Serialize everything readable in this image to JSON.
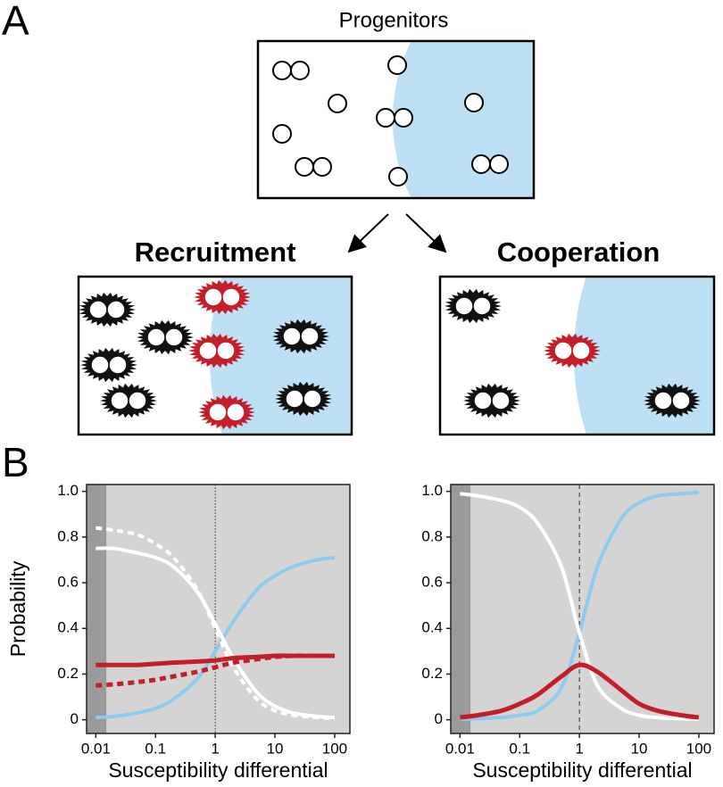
{
  "panel_labels": [
    "A",
    "B"
  ],
  "diagram": {
    "top_label": "Progenitors",
    "left_label": "Recruitment",
    "right_label": "Cooperation"
  },
  "chart_data": [
    {
      "type": "line",
      "xlabel": "Susceptibility differential",
      "ylabel": "Probability",
      "log_x": true,
      "x": [
        0.01,
        0.02,
        0.05,
        0.1,
        0.2,
        0.5,
        1,
        2,
        5,
        10,
        20,
        50,
        100
      ],
      "xlim": [
        0.007,
        180
      ],
      "xticks": [
        0.01,
        0.1,
        1,
        10,
        100
      ],
      "ylim": [
        -0.06,
        1.03
      ],
      "yticks": [
        0,
        0.2,
        0.4,
        0.6,
        0.8,
        {
          "value": 1,
          "label": "1.0"
        }
      ],
      "background": "#d4d4d4",
      "shade_x": [
        0.007,
        0.015
      ],
      "shade_color": "#9a9a9a",
      "vline": 1,
      "vline_style": "dotted",
      "series": [
        {
          "color": "#8ec9ee",
          "style": "solid",
          "values": [
            0.01,
            0.015,
            0.03,
            0.05,
            0.09,
            0.18,
            0.3,
            0.43,
            0.57,
            0.63,
            0.67,
            0.7,
            0.71
          ]
        },
        {
          "color": "#ffffff",
          "style": "dashed",
          "values": [
            0.84,
            0.83,
            0.81,
            0.77,
            0.71,
            0.57,
            0.4,
            0.23,
            0.09,
            0.04,
            0.02,
            0.01,
            0.005
          ]
        },
        {
          "color": "#ffffff",
          "style": "solid",
          "values": [
            0.75,
            0.75,
            0.73,
            0.71,
            0.67,
            0.56,
            0.42,
            0.27,
            0.12,
            0.06,
            0.03,
            0.015,
            0.01
          ]
        },
        {
          "color": "#c41e2a",
          "style": "dashed",
          "values": [
            0.15,
            0.155,
            0.165,
            0.175,
            0.19,
            0.21,
            0.23,
            0.25,
            0.265,
            0.275,
            0.28,
            0.28,
            0.28
          ]
        },
        {
          "color": "#c41e2a",
          "style": "solid",
          "values": [
            0.24,
            0.24,
            0.24,
            0.245,
            0.25,
            0.255,
            0.26,
            0.27,
            0.275,
            0.28,
            0.28,
            0.28,
            0.28
          ]
        }
      ]
    },
    {
      "type": "line",
      "xlabel": "Susceptibility differential",
      "log_x": true,
      "x": [
        0.01,
        0.02,
        0.05,
        0.1,
        0.2,
        0.5,
        1,
        2,
        5,
        10,
        20,
        50,
        100
      ],
      "xlim": [
        0.007,
        180
      ],
      "xticks": [
        0.01,
        0.1,
        1,
        10,
        100
      ],
      "ylim": [
        -0.06,
        1.03
      ],
      "yticks": [
        0,
        0.2,
        0.4,
        0.6,
        0.8,
        {
          "value": 1,
          "label": "1.0"
        }
      ],
      "background": "#d4d4d4",
      "shade_x": [
        0.007,
        0.015
      ],
      "shade_color": "#9a9a9a",
      "vline": 1,
      "vline_style": "dashed",
      "series": [
        {
          "color": "#8ec9ee",
          "style": "solid",
          "values": [
            0.003,
            0.005,
            0.01,
            0.02,
            0.04,
            0.14,
            0.38,
            0.67,
            0.88,
            0.95,
            0.98,
            0.99,
            0.995
          ]
        },
        {
          "color": "#ffffff",
          "style": "solid",
          "values": [
            0.99,
            0.98,
            0.96,
            0.93,
            0.86,
            0.67,
            0.38,
            0.15,
            0.05,
            0.02,
            0.01,
            0.005,
            0.003
          ]
        },
        {
          "color": "#c41e2a",
          "style": "solid",
          "values": [
            0.01,
            0.02,
            0.04,
            0.07,
            0.11,
            0.19,
            0.24,
            0.21,
            0.13,
            0.07,
            0.04,
            0.02,
            0.01
          ]
        }
      ]
    }
  ]
}
